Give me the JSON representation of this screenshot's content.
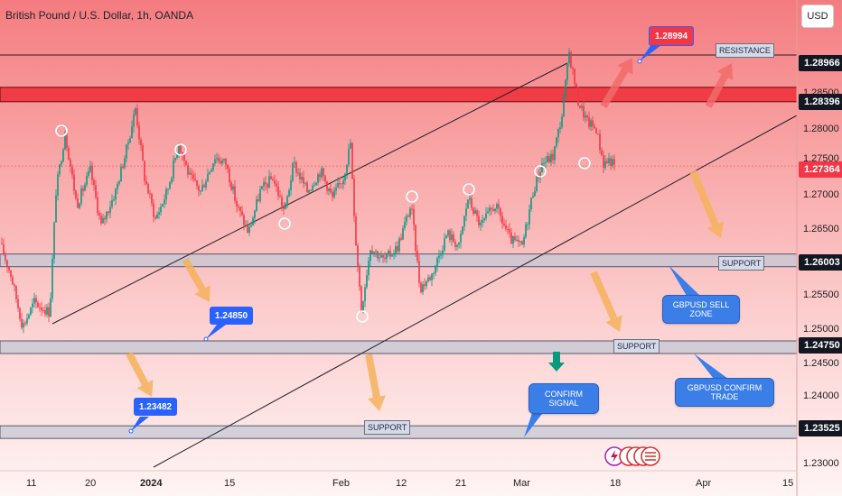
{
  "header": {
    "title": "British Pound / U.S. Dollar, 1h, OANDA",
    "currency_button": "USD"
  },
  "price_axis": {
    "ticks": [
      "1.28500",
      "1.28000",
      "1.27500",
      "1.27000",
      "1.26500",
      "1.25500",
      "1.25000",
      "1.24500",
      "1.24000",
      "1.23000"
    ],
    "tags": [
      {
        "text": "1.28966",
        "style": "dark"
      },
      {
        "text": "1.28396",
        "style": "dark"
      },
      {
        "text": "1.27364",
        "style": "red"
      },
      {
        "text": "1.26003",
        "style": "dark"
      },
      {
        "text": "1.24750",
        "style": "dark"
      },
      {
        "text": "1.23525",
        "style": "dark"
      }
    ]
  },
  "time_axis": [
    "11",
    "20",
    "2024",
    "15",
    "Feb",
    "12",
    "21",
    "Mar",
    "18",
    "Apr",
    "15"
  ],
  "annotations": {
    "resistance_label": "RESISTANCE",
    "support_labels": [
      "SUPPORT",
      "SUPPORT",
      "SUPPORT"
    ],
    "price_callouts": [
      "1.28994",
      "1.24850",
      "1.23482"
    ],
    "sell_zone": "GBPUSD SELL ZONE",
    "confirm_trade": "GBPUSD CONFIRM TRADE",
    "confirm_signal": "CONFIRM SIGNAL"
  },
  "colors": {
    "bull": "#089981",
    "bear": "#f23645",
    "resistance_zone": "#f0323c",
    "support_zone": "#c4c8d6",
    "callout": "#3b7ee8",
    "arrow": "#f5b25a"
  },
  "chart_data": {
    "type": "candlestick",
    "symbol": "GBPUSD",
    "interval": "1h",
    "ylim": [
      1.2275,
      1.292
    ],
    "current_price": 1.27364,
    "levels": [
      1.28966,
      1.28396,
      1.26003,
      1.2475,
      1.23525
    ],
    "path": [
      [
        0,
        1.2625
      ],
      [
        12,
        1.258
      ],
      [
        25,
        1.2505
      ],
      [
        38,
        1.254
      ],
      [
        55,
        1.2525
      ],
      [
        62,
        1.27
      ],
      [
        72,
        1.2785
      ],
      [
        85,
        1.268
      ],
      [
        100,
        1.273
      ],
      [
        112,
        1.265
      ],
      [
        128,
        1.27
      ],
      [
        140,
        1.276
      ],
      [
        150,
        1.282
      ],
      [
        160,
        1.272
      ],
      [
        172,
        1.266
      ],
      [
        185,
        1.27
      ],
      [
        198,
        1.277
      ],
      [
        210,
        1.272
      ],
      [
        222,
        1.27
      ],
      [
        238,
        1.275
      ],
      [
        250,
        1.274
      ],
      [
        262,
        1.268
      ],
      [
        275,
        1.264
      ],
      [
        288,
        1.27
      ],
      [
        302,
        1.272
      ],
      [
        315,
        1.267
      ],
      [
        325,
        1.274
      ],
      [
        340,
        1.27
      ],
      [
        355,
        1.273
      ],
      [
        368,
        1.269
      ],
      [
        380,
        1.272
      ],
      [
        388,
        1.277
      ],
      [
        392,
        1.266
      ],
      [
        400,
        1.253
      ],
      [
        410,
        1.262
      ],
      [
        425,
        1.26
      ],
      [
        440,
        1.262
      ],
      [
        455,
        1.268
      ],
      [
        465,
        1.256
      ],
      [
        478,
        1.258
      ],
      [
        495,
        1.264
      ],
      [
        508,
        1.262
      ],
      [
        518,
        1.269
      ],
      [
        532,
        1.265
      ],
      [
        548,
        1.268
      ],
      [
        565,
        1.263
      ],
      [
        578,
        1.262
      ],
      [
        590,
        1.27
      ],
      [
        600,
        1.274
      ],
      [
        612,
        1.275
      ],
      [
        622,
        1.281
      ],
      [
        630,
        1.29
      ],
      [
        640,
        1.283
      ],
      [
        650,
        1.28
      ],
      [
        660,
        1.279
      ],
      [
        668,
        1.274
      ],
      [
        675,
        1.2746
      ],
      [
        680,
        1.2736
      ]
    ]
  }
}
